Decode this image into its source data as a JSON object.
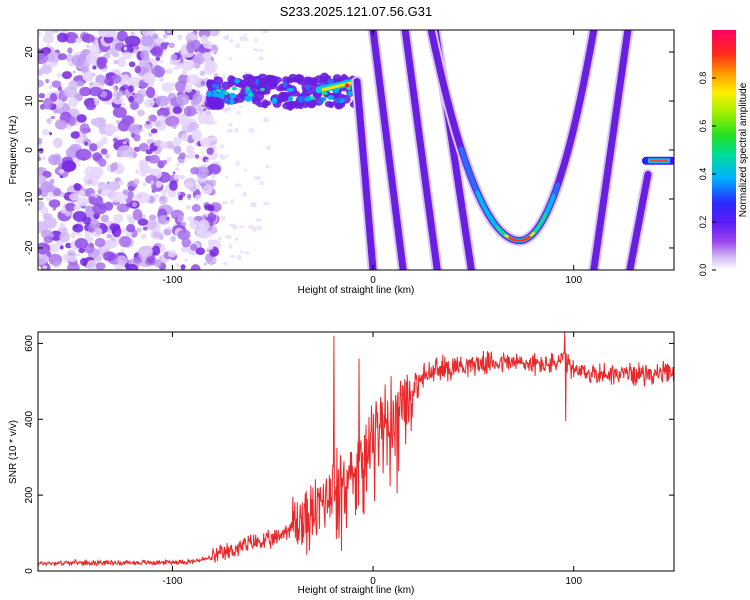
{
  "figure": {
    "title": "S233.2025.121.07.56.G31"
  },
  "colors": {
    "snr_line": "#e8282a",
    "spectrogram_noise": "#b090ea",
    "track": "#6a1ee0",
    "colormap": [
      "#ffffff",
      "#d4b8f5",
      "#8a2be2",
      "#3b19ff",
      "#00bfff",
      "#00e07a",
      "#7aff00",
      "#ffff00",
      "#ff8c00",
      "#ff1a1a",
      "#ff0066"
    ]
  },
  "chart_data": [
    {
      "type": "heatmap",
      "title": "S233.2025.121.07.56.G31",
      "xlabel": "Height of straight line (km)",
      "ylabel": "Frequency (Hz)",
      "xlim": [
        -167,
        150
      ],
      "ylim": [
        -24.5,
        24.5
      ],
      "x_ticks": [
        -100,
        0,
        100
      ],
      "y_ticks": [
        -20,
        -10,
        0,
        10,
        20
      ],
      "colorbar": {
        "label": "Normalized spectral amplitude",
        "range": [
          0,
          1
        ],
        "ticks": [
          0.0,
          0.2,
          0.4,
          0.6,
          0.8
        ]
      },
      "noise_region": {
        "x": [
          -167,
          -82
        ],
        "y": [
          -24.5,
          24.5
        ]
      },
      "features": [
        {
          "name": "band",
          "x": [
            -82,
            -7
          ],
          "y": [
            9,
            15
          ]
        },
        {
          "name": "line",
          "points": [
            [
              -8,
              14
            ],
            [
              0,
              -24.5
            ]
          ]
        },
        {
          "name": "line",
          "points": [
            [
              0,
              24.5
            ],
            [
              15,
              -24.5
            ]
          ]
        },
        {
          "name": "line",
          "points": [
            [
              16,
              24.5
            ],
            [
              32,
              -24.5
            ]
          ]
        },
        {
          "name": "line",
          "points": [
            [
              31,
              24.5
            ],
            [
              49,
              -24.5
            ]
          ]
        },
        {
          "name": "parabola",
          "vertex": [
            73,
            -18.5
          ],
          "left_end": [
            29,
            24.5
          ],
          "right_end": [
            110,
            24.5
          ]
        },
        {
          "name": "line",
          "points": [
            [
              110,
              -24.5
            ],
            [
              127,
              24.5
            ]
          ]
        },
        {
          "name": "line",
          "points": [
            [
              128,
              -24.5
            ],
            [
              137,
              -5
            ]
          ]
        },
        {
          "name": "segment",
          "x": [
            136,
            149
          ],
          "y": -2.2
        }
      ]
    },
    {
      "type": "line",
      "xlabel": "Height of straight line (km)",
      "ylabel": "SNR (10 * v/v)",
      "xlim": [
        -167,
        150
      ],
      "ylim": [
        0,
        630
      ],
      "x_ticks": [
        -100,
        0,
        100
      ],
      "y_ticks": [
        0,
        200,
        400,
        600
      ],
      "series": [
        {
          "x": [
            -167,
            -150,
            -130,
            -110,
            -90,
            -80,
            -70,
            -60,
            -50,
            -40,
            -30,
            -25,
            -20,
            -15,
            -10,
            -5,
            0,
            5,
            10,
            15,
            20,
            25,
            30,
            40,
            50,
            60,
            70,
            80,
            90,
            95,
            100,
            110,
            120,
            130,
            140,
            150
          ],
          "y": [
            20,
            22,
            22,
            22,
            25,
            35,
            55,
            75,
            80,
            120,
            145,
            185,
            230,
            245,
            270,
            310,
            360,
            390,
            420,
            450,
            480,
            510,
            525,
            540,
            545,
            550,
            550,
            545,
            545,
            560,
            525,
            520,
            520,
            520,
            520,
            520
          ],
          "spikes": [
            {
              "x": -19.5,
              "y": 620
            },
            {
              "x": -7,
              "y": 560
            },
            {
              "x": 95.5,
              "y": 630
            },
            {
              "x": 96,
              "y": 395
            },
            {
              "x": 12,
              "y": 205
            }
          ]
        }
      ]
    }
  ]
}
